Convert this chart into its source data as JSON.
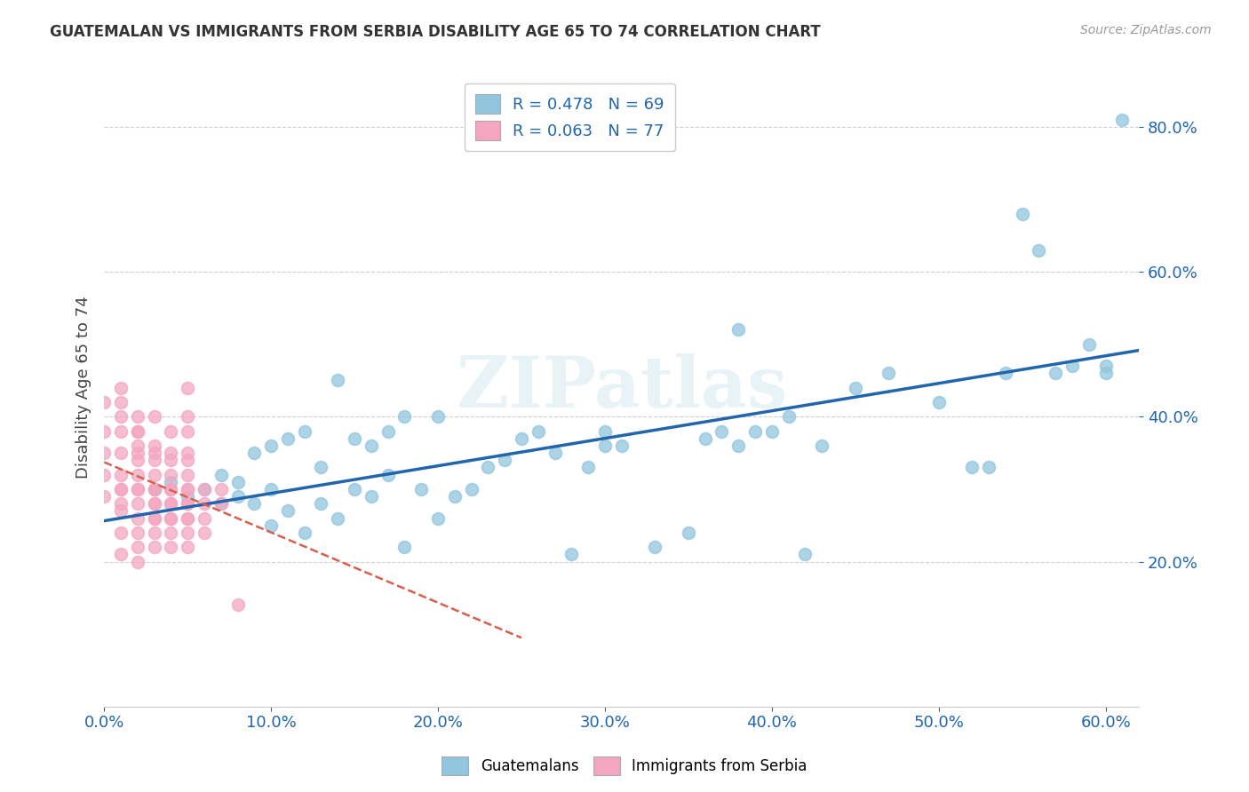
{
  "title": "GUATEMALAN VS IMMIGRANTS FROM SERBIA DISABILITY AGE 65 TO 74 CORRELATION CHART",
  "source": "Source: ZipAtlas.com",
  "ylabel": "Disability Age 65 to 74",
  "xlim": [
    0.0,
    0.62
  ],
  "ylim": [
    0.0,
    0.88
  ],
  "xticks": [
    0.0,
    0.1,
    0.2,
    0.3,
    0.4,
    0.5,
    0.6
  ],
  "yticks": [
    0.2,
    0.4,
    0.6,
    0.8
  ],
  "color_blue": "#92c5de",
  "color_pink": "#f4a6c0",
  "color_blue_dark": "#2166ac",
  "color_pink_dark": "#d6604d",
  "color_grid": "#cccccc",
  "background_color": "#ffffff",
  "watermark": "ZIPatlas",
  "blue_scatter_x": [
    0.03,
    0.04,
    0.05,
    0.06,
    0.07,
    0.07,
    0.08,
    0.08,
    0.09,
    0.09,
    0.1,
    0.1,
    0.1,
    0.11,
    0.11,
    0.12,
    0.12,
    0.13,
    0.13,
    0.14,
    0.14,
    0.15,
    0.15,
    0.16,
    0.16,
    0.17,
    0.17,
    0.18,
    0.18,
    0.19,
    0.2,
    0.2,
    0.21,
    0.22,
    0.23,
    0.24,
    0.25,
    0.26,
    0.27,
    0.28,
    0.29,
    0.3,
    0.3,
    0.31,
    0.33,
    0.35,
    0.36,
    0.37,
    0.38,
    0.38,
    0.39,
    0.4,
    0.41,
    0.42,
    0.43,
    0.45,
    0.47,
    0.5,
    0.52,
    0.53,
    0.54,
    0.55,
    0.56,
    0.57,
    0.58,
    0.59,
    0.6,
    0.6,
    0.61
  ],
  "blue_scatter_y": [
    0.3,
    0.31,
    0.29,
    0.3,
    0.32,
    0.28,
    0.31,
    0.29,
    0.35,
    0.28,
    0.36,
    0.3,
    0.25,
    0.37,
    0.27,
    0.38,
    0.24,
    0.33,
    0.28,
    0.45,
    0.26,
    0.37,
    0.3,
    0.36,
    0.29,
    0.38,
    0.32,
    0.4,
    0.22,
    0.3,
    0.4,
    0.26,
    0.29,
    0.3,
    0.33,
    0.34,
    0.37,
    0.38,
    0.35,
    0.21,
    0.33,
    0.38,
    0.36,
    0.36,
    0.22,
    0.24,
    0.37,
    0.38,
    0.36,
    0.52,
    0.38,
    0.38,
    0.4,
    0.21,
    0.36,
    0.44,
    0.46,
    0.42,
    0.33,
    0.33,
    0.46,
    0.68,
    0.63,
    0.46,
    0.47,
    0.5,
    0.47,
    0.46,
    0.81
  ],
  "pink_scatter_x": [
    0.0,
    0.0,
    0.0,
    0.0,
    0.0,
    0.01,
    0.01,
    0.01,
    0.01,
    0.01,
    0.01,
    0.01,
    0.01,
    0.01,
    0.01,
    0.01,
    0.01,
    0.02,
    0.02,
    0.02,
    0.02,
    0.02,
    0.02,
    0.02,
    0.02,
    0.02,
    0.02,
    0.02,
    0.02,
    0.02,
    0.02,
    0.03,
    0.03,
    0.03,
    0.03,
    0.03,
    0.03,
    0.03,
    0.03,
    0.03,
    0.03,
    0.03,
    0.03,
    0.03,
    0.04,
    0.04,
    0.04,
    0.04,
    0.04,
    0.04,
    0.04,
    0.04,
    0.04,
    0.04,
    0.04,
    0.04,
    0.05,
    0.05,
    0.05,
    0.05,
    0.05,
    0.05,
    0.05,
    0.05,
    0.05,
    0.05,
    0.05,
    0.05,
    0.05,
    0.05,
    0.06,
    0.06,
    0.06,
    0.06,
    0.07,
    0.07,
    0.08
  ],
  "pink_scatter_y": [
    0.29,
    0.32,
    0.35,
    0.38,
    0.42,
    0.28,
    0.3,
    0.32,
    0.35,
    0.38,
    0.4,
    0.42,
    0.44,
    0.3,
    0.27,
    0.24,
    0.21,
    0.3,
    0.32,
    0.34,
    0.36,
    0.38,
    0.4,
    0.28,
    0.26,
    0.24,
    0.22,
    0.2,
    0.3,
    0.35,
    0.38,
    0.3,
    0.32,
    0.34,
    0.36,
    0.28,
    0.26,
    0.24,
    0.22,
    0.4,
    0.3,
    0.28,
    0.26,
    0.35,
    0.3,
    0.32,
    0.28,
    0.26,
    0.24,
    0.22,
    0.35,
    0.38,
    0.3,
    0.28,
    0.34,
    0.26,
    0.3,
    0.32,
    0.28,
    0.26,
    0.24,
    0.22,
    0.35,
    0.38,
    0.3,
    0.28,
    0.34,
    0.26,
    0.4,
    0.44,
    0.3,
    0.28,
    0.26,
    0.24,
    0.3,
    0.28,
    0.14
  ]
}
